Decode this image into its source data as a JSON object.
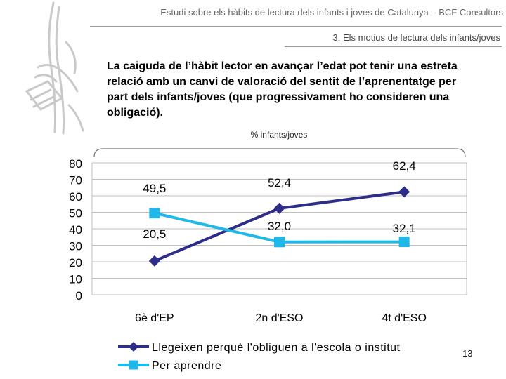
{
  "header": {
    "title": "Estudi sobre els hàbits de lectura dels infants i joves de Catalunya – BCF Consultors",
    "section": "3. Els motius de lectura dels infants/joves"
  },
  "headline": "La caiguda de l’hàbit lector en avançar l’edat pot tenir una estreta relació amb un canvi de valoració del sentit de l’aprenentatge per part dels infants/joves (que progressivament ho consideren una obligació).",
  "page_number": "13",
  "colors": {
    "series1": "#2E2D8A",
    "series2": "#1FB8E8",
    "grid": "#BFBFBF",
    "logo": "#C9C9C9"
  },
  "chart_data": {
    "type": "line",
    "title": "% infants/joves",
    "categories": [
      "6è d'EP",
      "2n d'ESO",
      "4t d'ESO"
    ],
    "ylim": [
      0,
      80
    ],
    "yticks": [
      0,
      10,
      20,
      30,
      40,
      50,
      60,
      70,
      80
    ],
    "ytick_labels": [
      "0",
      "10",
      "20",
      "30",
      "40",
      "50",
      "60",
      "70",
      "80"
    ],
    "legend_position": "bottom",
    "series": [
      {
        "name": "Llegeixen perquè l'obliguen a l'escola o institut",
        "values": [
          20.5,
          52.4,
          62.4
        ],
        "labels": [
          "20,5",
          "52,4",
          "62,4"
        ],
        "marker": "diamond"
      },
      {
        "name": "Per aprendre",
        "values": [
          49.5,
          32.0,
          32.1
        ],
        "labels": [
          "49,5",
          "32,0",
          "32,1"
        ],
        "marker": "square"
      }
    ]
  }
}
